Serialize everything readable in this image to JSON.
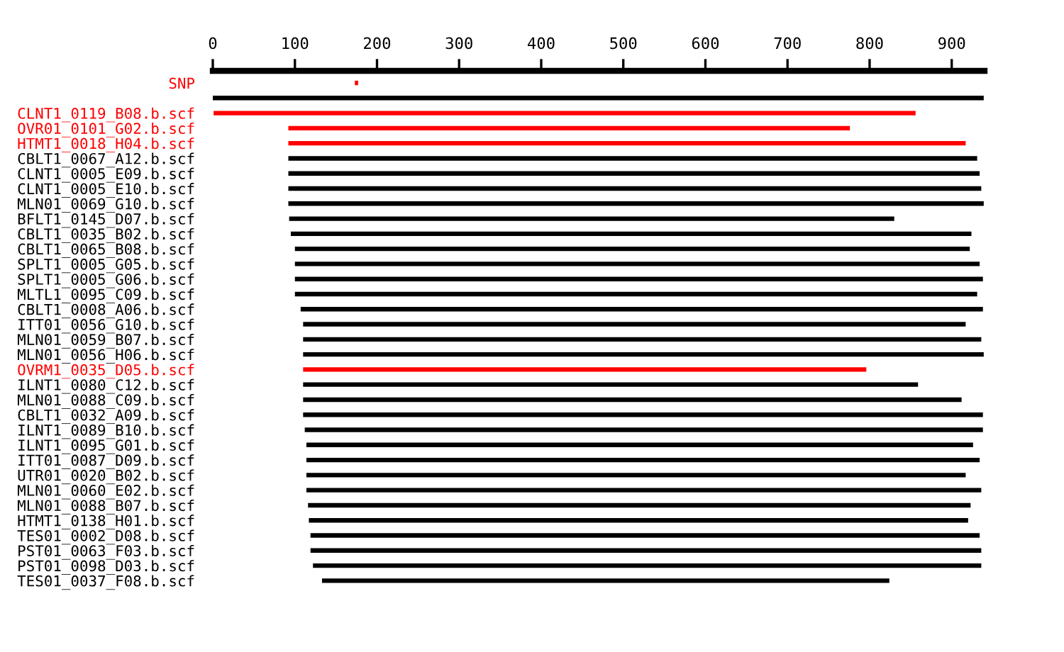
{
  "chart_data": {
    "type": "bar",
    "orientation": "horizontal",
    "categories": [
      "SNP",
      null,
      "CLNT1_0119_B08.b.scf",
      "OVR01_0101_G02.b.scf",
      "HTMT1_0018_H04.b.scf",
      "CBLT1_0067_A12.b.scf",
      "CLNT1_0005_E09.b.scf",
      "CLNT1_0005_E10.b.scf",
      "MLN01_0069_G10.b.scf",
      "BFLT1_0145_D07.b.scf",
      "CBLT1_0035_B02.b.scf",
      "CBLT1_0065_B08.b.scf",
      "SPLT1_0005_G05.b.scf",
      "SPLT1_0005_G06.b.scf",
      "MLTL1_0095_C09.b.scf",
      "CBLT1_0008_A06.b.scf",
      "ITT01_0056_G10.b.scf",
      "MLN01_0059_B07.b.scf",
      "MLN01_0056_H06.b.scf",
      "OVRM1_0035_D05.b.scf",
      "ILNT1_0080_C12.b.scf",
      "MLN01_0088_C09.b.scf",
      "CBLT1_0032_A09.b.scf",
      "ILNT1_0089_B10.b.scf",
      "ILNT1_0095_G01.b.scf",
      "ITT01_0087_D09.b.scf",
      "UTR01_0020_B02.b.scf",
      "MLN01_0060_E02.b.scf",
      "MLN01_0088_B07.b.scf",
      "HTMT1_0138_H01.b.scf",
      "TES01_0002_D08.b.scf",
      "PST01_0063_F03.b.scf",
      "PST01_0098_D03.b.scf",
      "TES01_0037_F08.b.scf"
    ],
    "base": [
      173,
      0,
      1,
      92,
      92,
      92,
      92,
      92,
      92,
      93,
      95,
      100,
      100,
      100,
      100,
      107,
      110,
      110,
      110,
      110,
      110,
      110,
      110,
      112,
      114,
      114,
      114,
      114,
      116,
      117,
      119,
      119,
      122,
      133
    ],
    "values": [
      4,
      939,
      855,
      684,
      825,
      839,
      842,
      844,
      847,
      737,
      829,
      822,
      834,
      838,
      831,
      831,
      807,
      826,
      829,
      686,
      749,
      802,
      828,
      826,
      812,
      820,
      803,
      822,
      807,
      803,
      815,
      817,
      814,
      691
    ],
    "colors": [
      "#ff0000",
      "#000000",
      "#ff0000",
      "#ff0000",
      "#ff0000",
      "#000000",
      "#000000",
      "#000000",
      "#000000",
      "#000000",
      "#000000",
      "#000000",
      "#000000",
      "#000000",
      "#000000",
      "#000000",
      "#000000",
      "#000000",
      "#000000",
      "#ff0000",
      "#000000",
      "#000000",
      "#000000",
      "#000000",
      "#000000",
      "#000000",
      "#000000",
      "#000000",
      "#000000",
      "#000000",
      "#000000",
      "#000000",
      "#000000",
      "#000000"
    ],
    "xlim": [
      0,
      940
    ],
    "xticks": [
      0,
      100,
      200,
      300,
      400,
      500,
      600,
      700,
      800,
      900
    ],
    "grid": false,
    "legend": false
  }
}
